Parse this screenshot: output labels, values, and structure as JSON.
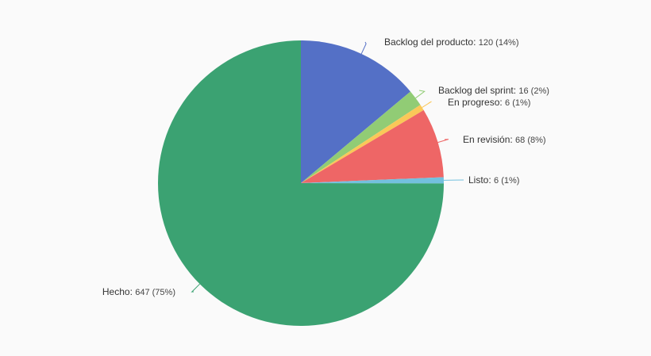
{
  "chart_data": {
    "type": "pie",
    "title": "",
    "slices": [
      {
        "name": "Backlog del producto",
        "value": 120,
        "percent": "14%",
        "color": "#5470c6"
      },
      {
        "name": "Backlog del sprint",
        "value": 16,
        "percent": "2%",
        "color": "#91cc75"
      },
      {
        "name": "En progreso",
        "value": 6,
        "percent": "1%",
        "color": "#fac858"
      },
      {
        "name": "En revisión",
        "value": 68,
        "percent": "8%",
        "color": "#ee6666"
      },
      {
        "name": "Listo",
        "value": 6,
        "percent": "1%",
        "color": "#73c0de"
      },
      {
        "name": "Hecho",
        "value": 647,
        "percent": "75%",
        "color": "#3ba272"
      }
    ],
    "start_angle": "top",
    "direction": "clockwise"
  }
}
